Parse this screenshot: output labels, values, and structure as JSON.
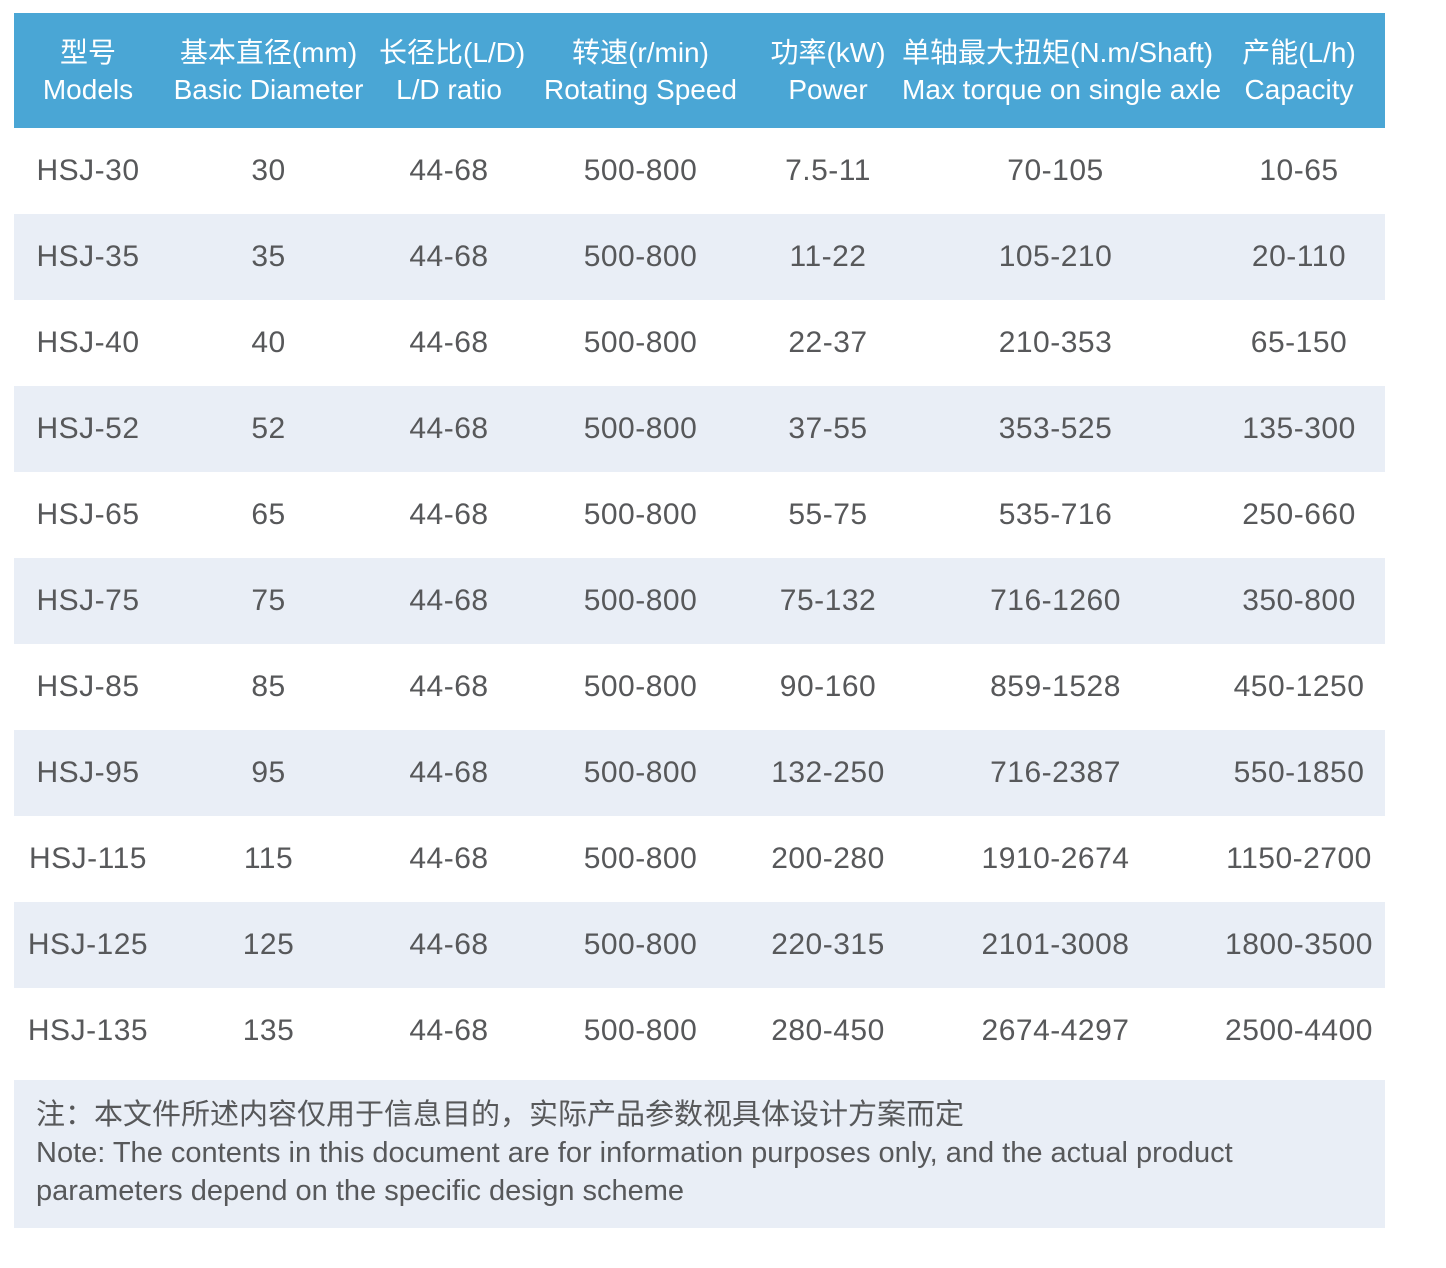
{
  "colors": {
    "header_bg": "#4AA6D5",
    "header_text": "#FFFFFF",
    "stripe_bg": "#E9EEF6",
    "body_text": "#57585A"
  },
  "table": {
    "columns": [
      {
        "zh": "型号",
        "en": "Models"
      },
      {
        "zh": "基本直径(mm)",
        "en": "Basic Diameter"
      },
      {
        "zh": "长径比(L/D)",
        "en": "L/D ratio"
      },
      {
        "zh": "转速(r/min)",
        "en": "Rotating Speed"
      },
      {
        "zh": "功率(kW)",
        "en": "Power"
      },
      {
        "zh": "单轴最大扭矩(N.m/Shaft)",
        "en": "Max torque on single axle"
      },
      {
        "zh": "产能(L/h)",
        "en": "Capacity"
      }
    ],
    "rows": [
      [
        "HSJ-30",
        "30",
        "44-68",
        "500-800",
        "7.5-11",
        "70-105",
        "10-65"
      ],
      [
        "HSJ-35",
        "35",
        "44-68",
        "500-800",
        "11-22",
        "105-210",
        "20-110"
      ],
      [
        "HSJ-40",
        "40",
        "44-68",
        "500-800",
        "22-37",
        "210-353",
        "65-150"
      ],
      [
        "HSJ-52",
        "52",
        "44-68",
        "500-800",
        "37-55",
        "353-525",
        "135-300"
      ],
      [
        "HSJ-65",
        "65",
        "44-68",
        "500-800",
        "55-75",
        "535-716",
        "250-660"
      ],
      [
        "HSJ-75",
        "75",
        "44-68",
        "500-800",
        "75-132",
        "716-1260",
        "350-800"
      ],
      [
        "HSJ-85",
        "85",
        "44-68",
        "500-800",
        "90-160",
        "859-1528",
        "450-1250"
      ],
      [
        "HSJ-95",
        "95",
        "44-68",
        "500-800",
        "132-250",
        "716-2387",
        "550-1850"
      ],
      [
        "HSJ-115",
        "115",
        "44-68",
        "500-800",
        "200-280",
        "1910-2674",
        "1150-2700"
      ],
      [
        "HSJ-125",
        "125",
        "44-68",
        "500-800",
        "220-315",
        "2101-3008",
        "1800-3500"
      ],
      [
        "HSJ-135",
        "135",
        "44-68",
        "500-800",
        "280-450",
        "2674-4297",
        "2500-4400"
      ]
    ]
  },
  "note": {
    "zh": "注：本文件所述内容仅用于信息目的，实际产品参数视具体设计方案而定",
    "en": "Note: The contents in this document are for information purposes only, and the actual product parameters depend on the specific design scheme"
  }
}
